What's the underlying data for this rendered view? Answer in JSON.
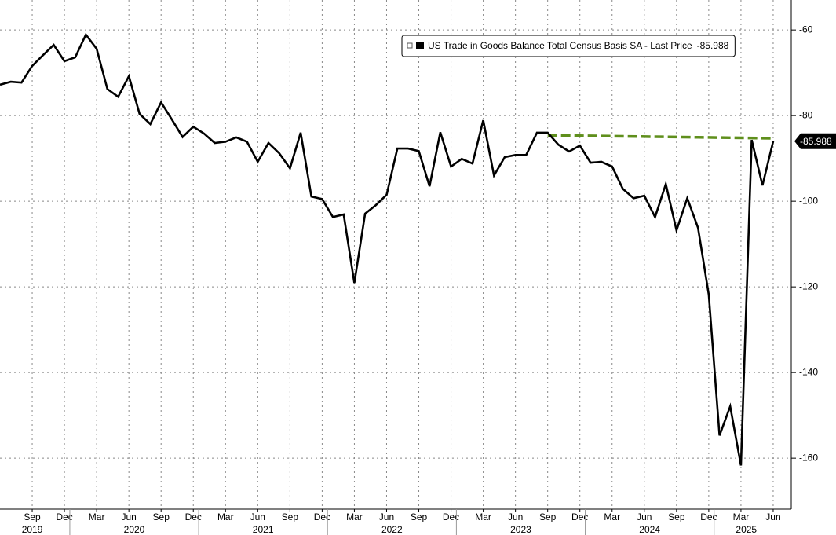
{
  "chart_data": {
    "type": "line",
    "x": [
      "Jun 2019",
      "Jul 2019",
      "Aug 2019",
      "Sep 2019",
      "Oct 2019",
      "Nov 2019",
      "Dec 2019",
      "Jan 2020",
      "Feb 2020",
      "Mar 2020",
      "Apr 2020",
      "May 2020",
      "Jun 2020",
      "Jul 2020",
      "Aug 2020",
      "Sep 2020",
      "Oct 2020",
      "Nov 2020",
      "Dec 2020",
      "Jan 2021",
      "Feb 2021",
      "Mar 2021",
      "Apr 2021",
      "May 2021",
      "Jun 2021",
      "Jul 2021",
      "Aug 2021",
      "Sep 2021",
      "Oct 2021",
      "Nov 2021",
      "Dec 2021",
      "Jan 2022",
      "Feb 2022",
      "Mar 2022",
      "Apr 2022",
      "May 2022",
      "Jun 2022",
      "Jul 2022",
      "Aug 2022",
      "Sep 2022",
      "Oct 2022",
      "Nov 2022",
      "Dec 2022",
      "Jan 2023",
      "Feb 2023",
      "Mar 2023",
      "Apr 2023",
      "May 2023",
      "Jun 2023",
      "Jul 2023",
      "Aug 2023",
      "Sep 2023",
      "Oct 2023",
      "Nov 2023",
      "Dec 2023",
      "Jan 2024",
      "Feb 2024",
      "Mar 2024",
      "Apr 2024",
      "May 2024",
      "Jun 2024",
      "Jul 2024",
      "Aug 2024",
      "Sep 2024",
      "Oct 2024",
      "Nov 2024",
      "Dec 2024",
      "Jan 2025",
      "Feb 2025",
      "Mar 2025",
      "Apr 2025",
      "May 2025",
      "Jun 2025"
    ],
    "series": [
      {
        "name": "US Trade in Goods Balance Total Census Basis SA - Last Price",
        "color": "#000000",
        "values": [
          -72.8,
          -72.1,
          -72.3,
          -68.4,
          -65.9,
          -63.5,
          -67.3,
          -66.4,
          -61.1,
          -64.4,
          -73.8,
          -75.6,
          -70.8,
          -79.6,
          -82.0,
          -76.9,
          -80.9,
          -85.0,
          -82.6,
          -84.2,
          -86.4,
          -86.1,
          -85.1,
          -86.1,
          -90.8,
          -86.4,
          -88.8,
          -92.3,
          -84.0,
          -98.9,
          -99.5,
          -103.7,
          -103.1,
          -119.1,
          -102.9,
          -100.9,
          -98.5,
          -87.7,
          -87.7,
          -88.3,
          -96.5,
          -83.9,
          -91.9,
          -90.1,
          -91.2,
          -81.1,
          -94.0,
          -89.7,
          -89.2,
          -89.2,
          -84.0,
          -84.0,
          -86.8,
          -88.4,
          -87.0,
          -91.0,
          -90.8,
          -91.9,
          -97.1,
          -99.3,
          -98.7,
          -103.7,
          -96.0,
          -106.8,
          -99.3,
          -106.2,
          -121.8,
          -154.7,
          -147.9,
          -161.7,
          -85.7,
          -96.3,
          -85.988
        ]
      }
    ],
    "trend_line": {
      "color": "#5f8f1c",
      "x": [
        "Sep 2023",
        "Jun 2025"
      ],
      "values": [
        -84.6,
        -85.3
      ]
    },
    "ylim": [
      -171.9,
      -53.0
    ],
    "yticks": [
      -60,
      -80,
      -100,
      -120,
      -140,
      -160
    ],
    "xticks": [
      {
        "value": "Sep 2019",
        "label": "Sep"
      },
      {
        "value": "Dec 2019",
        "label": "Dec"
      },
      {
        "value": "Mar 2020",
        "label": "Mar"
      },
      {
        "value": "Jun 2020",
        "label": "Jun"
      },
      {
        "value": "Sep 2020",
        "label": "Sep"
      },
      {
        "value": "Dec 2020",
        "label": "Dec"
      },
      {
        "value": "Mar 2021",
        "label": "Mar"
      },
      {
        "value": "Jun 2021",
        "label": "Jun"
      },
      {
        "value": "Sep 2021",
        "label": "Sep"
      },
      {
        "value": "Dec 2021",
        "label": "Dec"
      },
      {
        "value": "Mar 2022",
        "label": "Mar"
      },
      {
        "value": "Jun 2022",
        "label": "Jun"
      },
      {
        "value": "Sep 2022",
        "label": "Sep"
      },
      {
        "value": "Dec 2022",
        "label": "Dec"
      },
      {
        "value": "Mar 2023",
        "label": "Mar"
      },
      {
        "value": "Jun 2023",
        "label": "Jun"
      },
      {
        "value": "Sep 2023",
        "label": "Sep"
      },
      {
        "value": "Dec 2023",
        "label": "Dec"
      },
      {
        "value": "Mar 2024",
        "label": "Mar"
      },
      {
        "value": "Jun 2024",
        "label": "Jun"
      },
      {
        "value": "Sep 2024",
        "label": "Sep"
      },
      {
        "value": "Dec 2024",
        "label": "Dec"
      },
      {
        "value": "Mar 2025",
        "label": "Mar"
      },
      {
        "value": "Jun 2025",
        "label": "Jun"
      }
    ],
    "years": [
      "2019",
      "2020",
      "2021",
      "2022",
      "2023",
      "2024",
      "2025"
    ],
    "grid": true,
    "legend": "top-right"
  }
}
